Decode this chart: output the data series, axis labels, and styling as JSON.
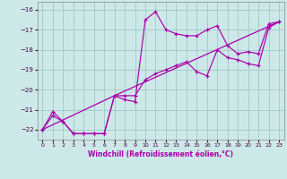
{
  "xlabel": "Windchill (Refroidissement éolien,°C)",
  "xlim": [
    -0.5,
    23.5
  ],
  "ylim": [
    -22.5,
    -15.6
  ],
  "yticks": [
    -22,
    -21,
    -20,
    -19,
    -18,
    -17,
    -16
  ],
  "xticks": [
    0,
    1,
    2,
    3,
    4,
    5,
    6,
    7,
    8,
    9,
    10,
    11,
    12,
    13,
    14,
    15,
    16,
    17,
    18,
    19,
    20,
    21,
    22,
    23
  ],
  "bg_color": "#cde8e8",
  "grid_color": "#a0c8c8",
  "line_color": "#aa00aa",
  "line1_x": [
    0,
    1,
    2,
    3,
    4,
    5,
    6,
    7,
    8,
    9,
    10,
    11,
    12,
    13,
    14,
    15,
    16,
    17,
    18,
    19,
    20,
    21,
    22,
    23
  ],
  "line1_y": [
    -22.0,
    -21.1,
    -21.6,
    -22.2,
    -22.2,
    -22.2,
    -22.2,
    -20.3,
    -20.5,
    -20.6,
    -16.5,
    -16.1,
    -17.0,
    -17.2,
    -17.3,
    -17.3,
    -17.0,
    -16.8,
    -17.8,
    -18.2,
    -18.1,
    -18.2,
    -16.7,
    -16.6
  ],
  "line2_x": [
    0,
    1,
    2,
    3,
    4,
    5,
    6,
    7,
    8,
    9,
    10,
    11,
    12,
    13,
    14,
    15,
    16,
    17,
    18,
    19,
    20,
    21,
    22,
    23
  ],
  "line2_y": [
    -22.0,
    -21.3,
    -21.6,
    -22.2,
    -22.2,
    -22.2,
    -22.2,
    -20.3,
    -20.3,
    -20.3,
    -19.5,
    -19.2,
    -19.0,
    -18.8,
    -18.6,
    -19.1,
    -19.3,
    -18.0,
    -18.4,
    -18.5,
    -18.7,
    -18.8,
    -16.9,
    -16.6
  ],
  "line3_x": [
    0,
    7,
    23
  ],
  "line3_y": [
    -22.0,
    -20.3,
    -16.6
  ]
}
